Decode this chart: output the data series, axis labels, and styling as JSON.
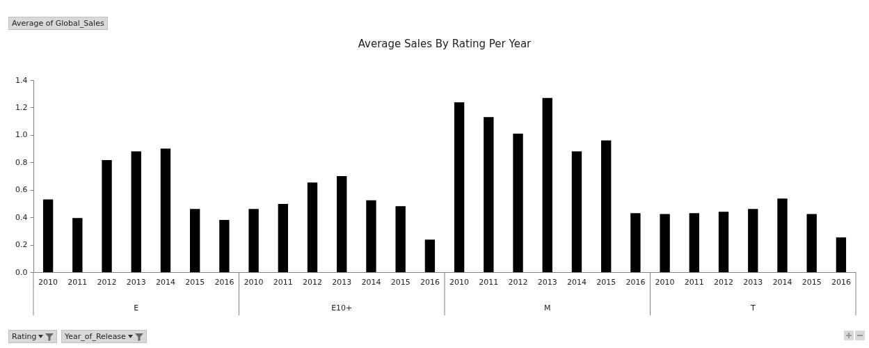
{
  "chart_data": {
    "type": "bar",
    "title": "Average Sales By Rating Per Year",
    "categories": [
      "2010",
      "2011",
      "2012",
      "2013",
      "2014",
      "2015",
      "2016",
      "2010",
      "2011",
      "2012",
      "2013",
      "2014",
      "2015",
      "2016",
      "2010",
      "2011",
      "2012",
      "2013",
      "2014",
      "2015",
      "2016",
      "2010",
      "2011",
      "2012",
      "2013",
      "2014",
      "2015",
      "2016"
    ],
    "values": [
      0.53,
      0.395,
      0.817,
      0.88,
      0.9,
      0.46,
      0.38,
      0.46,
      0.497,
      0.653,
      0.7,
      0.524,
      0.48,
      0.237,
      1.238,
      1.13,
      1.01,
      1.27,
      0.88,
      0.96,
      0.43,
      0.424,
      0.43,
      0.44,
      0.46,
      0.537,
      0.424,
      0.253
    ],
    "color": "#000000",
    "ylim": [
      0,
      1.4
    ],
    "yticks": [
      {
        "value": 0,
        "label": "0.0"
      },
      0.2,
      0.4,
      0.6,
      0.8,
      {
        "value": 1,
        "label": "1.0"
      },
      1.2,
      1.4
    ],
    "grid": false,
    "annotations": [
      "Average of Global_Sales",
      "E",
      "E10+",
      "M",
      "T",
      "Rating",
      "Year_of_Release"
    ]
  }
}
